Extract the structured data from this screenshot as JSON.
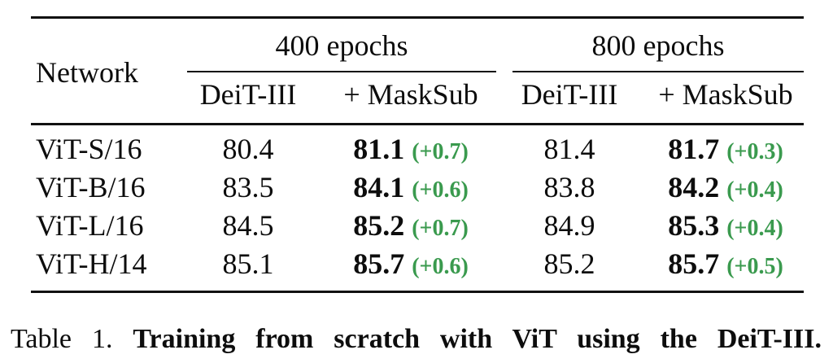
{
  "colors": {
    "background": "#ffffff",
    "text": "#0d0d0d",
    "rule": "#111111",
    "delta": "#3a9a4e"
  },
  "table": {
    "network_header": "Network",
    "groups": [
      {
        "label": "400 epochs",
        "columns": [
          "DeiT-III",
          "+ MaskSub"
        ]
      },
      {
        "label": "800 epochs",
        "columns": [
          "DeiT-III",
          "+ MaskSub"
        ]
      }
    ],
    "rows": [
      {
        "network": "ViT-S/16",
        "e400_deit": "80.4",
        "e400_masksub": "81.1",
        "e400_delta": "(+0.7)",
        "e800_deit": "81.4",
        "e800_masksub": "81.7",
        "e800_delta": "(+0.3)"
      },
      {
        "network": "ViT-B/16",
        "e400_deit": "83.5",
        "e400_masksub": "84.1",
        "e400_delta": "(+0.6)",
        "e800_deit": "83.8",
        "e800_masksub": "84.2",
        "e800_delta": "(+0.4)"
      },
      {
        "network": "ViT-L/16",
        "e400_deit": "84.5",
        "e400_masksub": "85.2",
        "e400_delta": "(+0.7)",
        "e800_deit": "84.9",
        "e800_masksub": "85.3",
        "e800_delta": "(+0.4)"
      },
      {
        "network": "ViT-H/14",
        "e400_deit": "85.1",
        "e400_masksub": "85.7",
        "e400_delta": "(+0.6)",
        "e800_deit": "85.2",
        "e800_masksub": "85.7",
        "e800_delta": "(+0.5)"
      }
    ]
  },
  "caption": {
    "label": "Table 1.",
    "text": "Training from scratch with ViT using the DeiT-III."
  }
}
